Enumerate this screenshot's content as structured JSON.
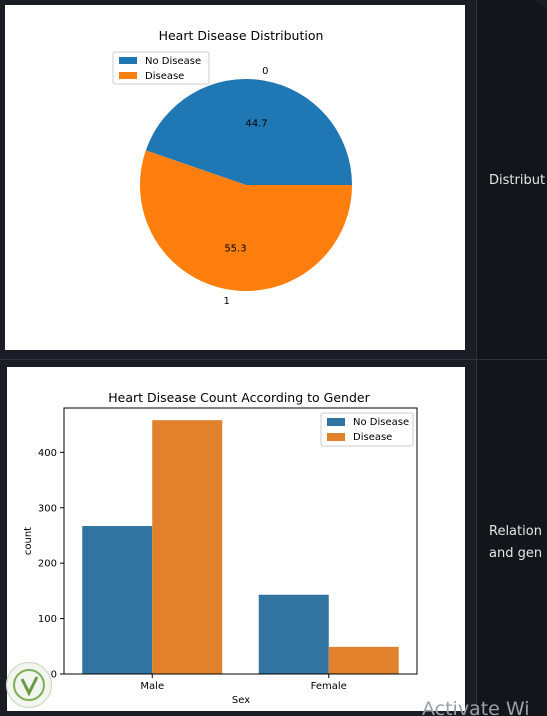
{
  "side_texts": [
    "Distribut",
    "Relation",
    "and gen"
  ],
  "watermark": "Activate Wi",
  "colors": {
    "no_disease": "#1f77b4",
    "disease": "#ff7f0e",
    "bar_no_disease": "#3274a1",
    "bar_disease": "#e1812c"
  },
  "chart_data": [
    {
      "type": "pie",
      "title": "Heart Disease Distribution",
      "labels": [
        "0",
        "1"
      ],
      "values": [
        44.7,
        55.3
      ],
      "value_labels": [
        "44.7",
        "55.3"
      ],
      "legend": [
        "No Disease",
        "Disease"
      ],
      "legend_position": "upper-left"
    },
    {
      "type": "bar",
      "title": "Heart Disease Count According to Gender",
      "xlabel": "Sex",
      "ylabel": "count",
      "categories": [
        "Male",
        "Female"
      ],
      "series": [
        {
          "name": "No Disease",
          "values": [
            267,
            143
          ]
        },
        {
          "name": "Disease",
          "values": [
            458,
            49
          ]
        }
      ],
      "ylim": [
        0,
        480
      ],
      "yticks": [
        "0",
        "100",
        "200",
        "300",
        "400"
      ],
      "legend_position": "upper-right"
    }
  ]
}
